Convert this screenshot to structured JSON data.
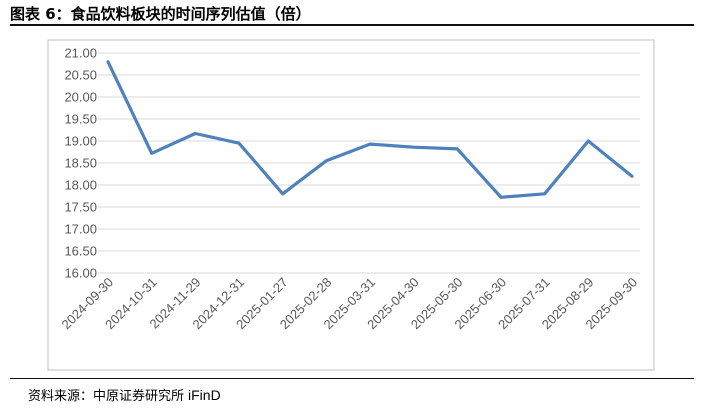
{
  "figure": {
    "title": "图表 6：食品饮料板块的时间序列估值（倍）",
    "source_label": "资料来源：中原证券研究所",
    "source_brand": "iFinD"
  },
  "chart_data": {
    "type": "line",
    "title": "",
    "xlabel": "",
    "ylabel": "",
    "ylim": [
      16.0,
      21.0
    ],
    "ytick_step": 0.5,
    "yticks": [
      "21.00",
      "20.50",
      "20.00",
      "19.50",
      "19.00",
      "18.50",
      "18.00",
      "17.50",
      "17.00",
      "16.50",
      "16.00"
    ],
    "grid": true,
    "legend": "none",
    "x": [
      "2024-09-30",
      "2024-10-31",
      "2024-11-29",
      "2024-12-31",
      "2025-01-27",
      "2025-02-28",
      "2025-03-31",
      "2025-04-30",
      "2025-05-30",
      "2025-06-30",
      "2025-07-31",
      "2025-08-29",
      "2025-09-30"
    ],
    "series": [
      {
        "values": [
          20.8,
          18.72,
          19.17,
          18.95,
          17.8,
          18.55,
          18.93,
          18.86,
          18.82,
          17.72,
          17.8,
          19.0,
          18.2
        ],
        "color": "#4f81bd"
      }
    ],
    "colors": {
      "line": "#4f81bd",
      "grid": "#d9d9d9",
      "frame": "#bfbfbf",
      "ticks": "#595959"
    }
  }
}
